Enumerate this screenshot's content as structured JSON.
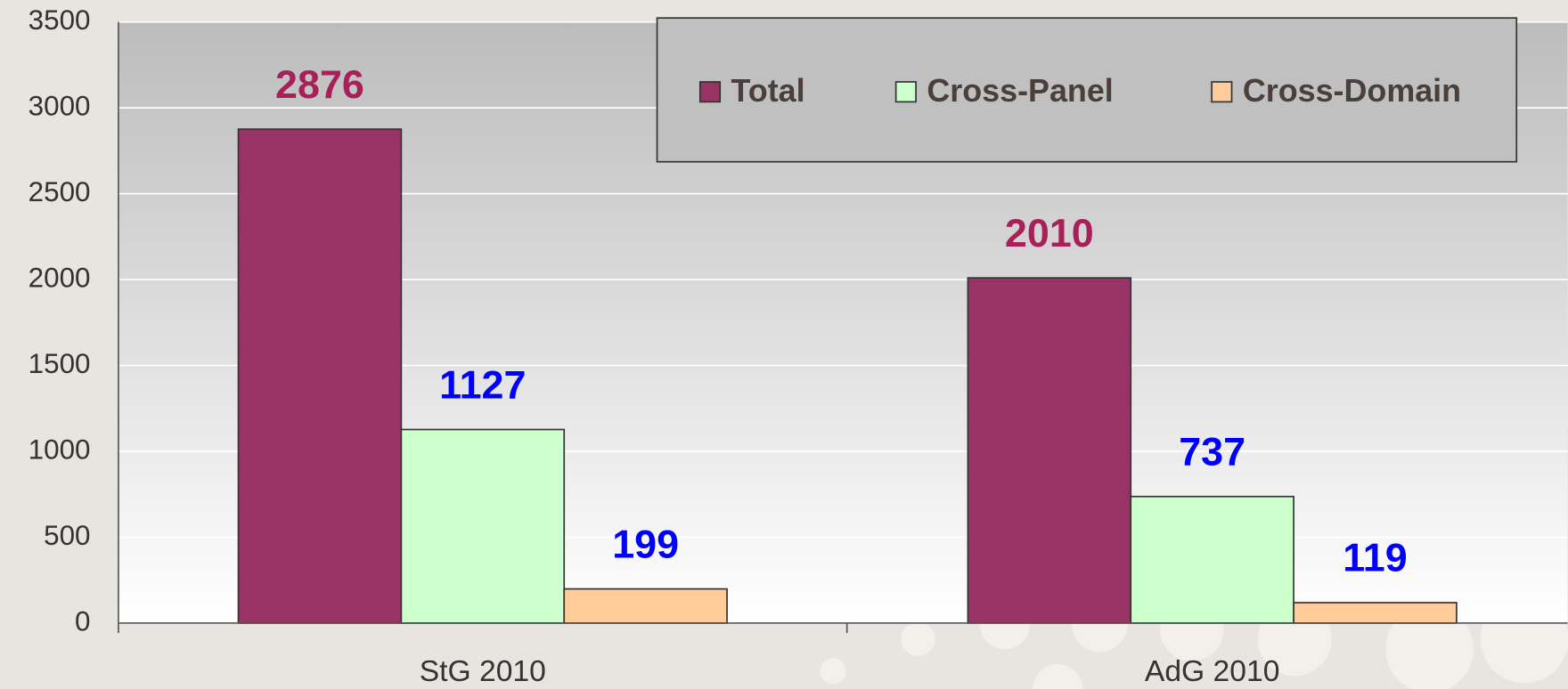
{
  "chart_data": {
    "type": "bar",
    "categories": [
      "StG 2010",
      "AdG 2010"
    ],
    "series": [
      {
        "name": "Total",
        "color": "#993366",
        "label_color": "#a8205a",
        "values": [
          2876,
          2010
        ]
      },
      {
        "name": "Cross-Panel",
        "color": "#ccffcc",
        "label_color": "#0000ff",
        "values": [
          1127,
          737
        ]
      },
      {
        "name": "Cross-Domain",
        "color": "#ffcc99",
        "label_color": "#0000ff",
        "values": [
          199,
          119
        ]
      }
    ],
    "ylim": [
      0,
      3500
    ],
    "yticks": [
      0,
      500,
      1000,
      1500,
      2000,
      2500,
      3000,
      3500
    ],
    "grid": true,
    "legend": "top-right"
  }
}
